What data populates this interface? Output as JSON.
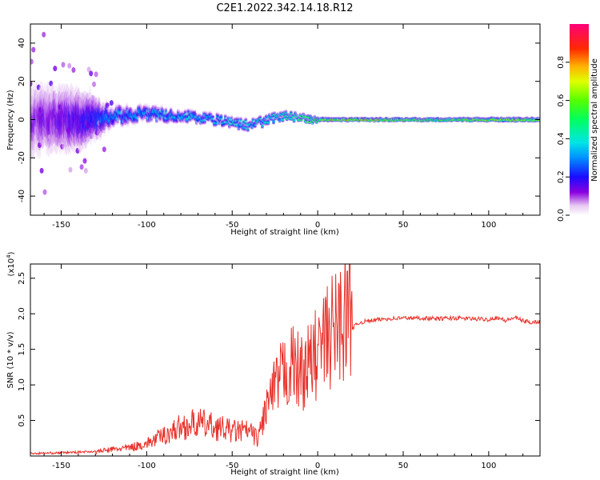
{
  "figure_title": "C2E1.2022.342.14.18.R12",
  "chart_data": [
    {
      "type": "heatmap",
      "title": "",
      "xlabel": "Height of straight line (km)",
      "ylabel": "Frequency (Hz)",
      "xlim": [
        -168,
        130
      ],
      "ylim": [
        -50,
        50
      ],
      "xticks": [
        -150,
        -100,
        -50,
        0,
        50,
        100
      ],
      "xtick_labels": [
        "-150",
        "-100",
        "-50",
        "0",
        "50",
        "100"
      ],
      "yticks": [
        -40,
        -20,
        0,
        20,
        40
      ],
      "ytick_labels": [
        "-40",
        "-20",
        "0",
        "20",
        "40"
      ],
      "colorbar": {
        "label": "Normalized spectral amplitude",
        "range": [
          0,
          1
        ],
        "ticks": [
          0.0,
          0.2,
          0.4,
          0.6,
          0.8
        ],
        "tick_labels": [
          "0.0",
          "0.2",
          "0.4",
          "0.6",
          "0.8"
        ],
        "colormap": "rainbow"
      },
      "description_points": [
        {
          "x": -160,
          "center_freq": 0,
          "spread": 45,
          "peak_amp": 0.15
        },
        {
          "x": -140,
          "center_freq": 0,
          "spread": 40,
          "peak_amp": 0.2
        },
        {
          "x": -120,
          "center_freq": 2,
          "spread": 10,
          "peak_amp": 0.35
        },
        {
          "x": -100,
          "center_freq": 3,
          "spread": 8,
          "peak_amp": 0.35
        },
        {
          "x": -80,
          "center_freq": 2,
          "spread": 6,
          "peak_amp": 0.4
        },
        {
          "x": -60,
          "center_freq": 0,
          "spread": 5,
          "peak_amp": 0.4
        },
        {
          "x": -40,
          "center_freq": -3,
          "spread": 4,
          "peak_amp": 0.45
        },
        {
          "x": -20,
          "center_freq": 2,
          "spread": 3,
          "peak_amp": 0.5
        },
        {
          "x": 0,
          "center_freq": 0,
          "spread": 2,
          "peak_amp": 0.7
        },
        {
          "x": 25,
          "center_freq": 0,
          "spread": 1.5,
          "peak_amp": 0.9
        },
        {
          "x": 50,
          "center_freq": 0,
          "spread": 1.5,
          "peak_amp": 0.75
        },
        {
          "x": 75,
          "center_freq": 0,
          "spread": 1.5,
          "peak_amp": 0.7
        },
        {
          "x": 100,
          "center_freq": 0,
          "spread": 2,
          "peak_amp": 0.8
        },
        {
          "x": 125,
          "center_freq": 0,
          "spread": 2,
          "peak_amp": 0.75
        }
      ]
    },
    {
      "type": "line",
      "title": "",
      "xlabel": "Height of straight line (km)",
      "ylabel": "SNR (10 * v/v)",
      "y_multiplier_label": "(x10",
      "y_multiplier_exp": "4",
      "xlim": [
        -168,
        130
      ],
      "ylim": [
        0,
        2.7
      ],
      "xticks": [
        -150,
        -100,
        -50,
        0,
        50,
        100
      ],
      "xtick_labels": [
        "-150",
        "-100",
        "-50",
        "0",
        "50",
        "100"
      ],
      "yticks": [
        0.5,
        1.0,
        1.5,
        2.0,
        2.5
      ],
      "ytick_labels": [
        "0.5",
        "1.0",
        "1.5",
        "2.0",
        "2.5"
      ],
      "color": "#e8312a",
      "series": [
        {
          "x": [
            -168,
            -150,
            -130,
            -120,
            -110,
            -100,
            -90,
            -80,
            -70,
            -60,
            -50,
            -40,
            -35,
            -30,
            -25,
            -20,
            -15,
            -10,
            -5,
            0,
            5,
            10,
            15,
            20,
            25,
            30,
            40,
            50,
            60,
            70,
            80,
            90,
            100,
            105,
            110,
            115,
            120,
            125,
            130
          ],
          "y": [
            0.02,
            0.03,
            0.05,
            0.08,
            0.1,
            0.15,
            0.25,
            0.35,
            0.4,
            0.35,
            0.3,
            0.3,
            0.2,
            0.6,
            0.8,
            1.0,
            1.1,
            1.0,
            1.1,
            1.25,
            1.4,
            1.55,
            1.7,
            1.8,
            1.88,
            1.9,
            1.93,
            1.94,
            1.94,
            1.93,
            1.94,
            1.93,
            1.92,
            1.95,
            1.9,
            1.95,
            1.9,
            1.88,
            1.89
          ]
        }
      ]
    }
  ]
}
